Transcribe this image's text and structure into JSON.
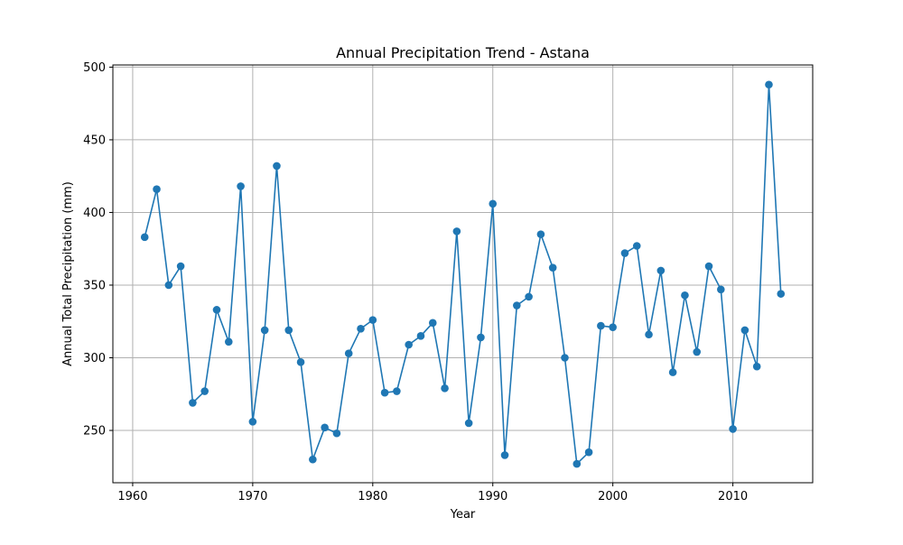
{
  "chart_data": {
    "type": "line",
    "title": "Annual Precipitation Trend - Astana",
    "xlabel": "Year",
    "ylabel": "Annual Total Precipitation (mm)",
    "xlim": [
      1958.35,
      2016.65
    ],
    "ylim": [
      214,
      501.5
    ],
    "xticks": [
      1960,
      1970,
      1980,
      1990,
      2000,
      2010
    ],
    "yticks": [
      250,
      300,
      350,
      400,
      450,
      500
    ],
    "grid": true,
    "marker": "circle",
    "color": "#1f77b4",
    "series": [
      {
        "x": [
          1961,
          1962,
          1963,
          1964,
          1965,
          1966,
          1967,
          1968,
          1969,
          1970,
          1971,
          1972,
          1973,
          1974,
          1975,
          1976,
          1977,
          1978,
          1979,
          1980,
          1981,
          1982,
          1983,
          1984,
          1985,
          1986,
          1987,
          1988,
          1989,
          1990,
          1991,
          1992,
          1993,
          1994,
          1995,
          1996,
          1997,
          1998,
          1999,
          2000,
          2001,
          2002,
          2003,
          2004,
          2005,
          2006,
          2007,
          2008,
          2009,
          2010,
          2011,
          2012,
          2013,
          2014
        ],
        "values": [
          383,
          416,
          350,
          363,
          269,
          277,
          333,
          311,
          418,
          256,
          319,
          432,
          319,
          297,
          230,
          252,
          248,
          303,
          320,
          326,
          276,
          277,
          309,
          315,
          324,
          279,
          387,
          255,
          314,
          406,
          233,
          336,
          342,
          385,
          362,
          300,
          227,
          235,
          322,
          321,
          372,
          377,
          316,
          360,
          290,
          343,
          304,
          363,
          347,
          251,
          319,
          294,
          488,
          344
        ]
      }
    ]
  }
}
